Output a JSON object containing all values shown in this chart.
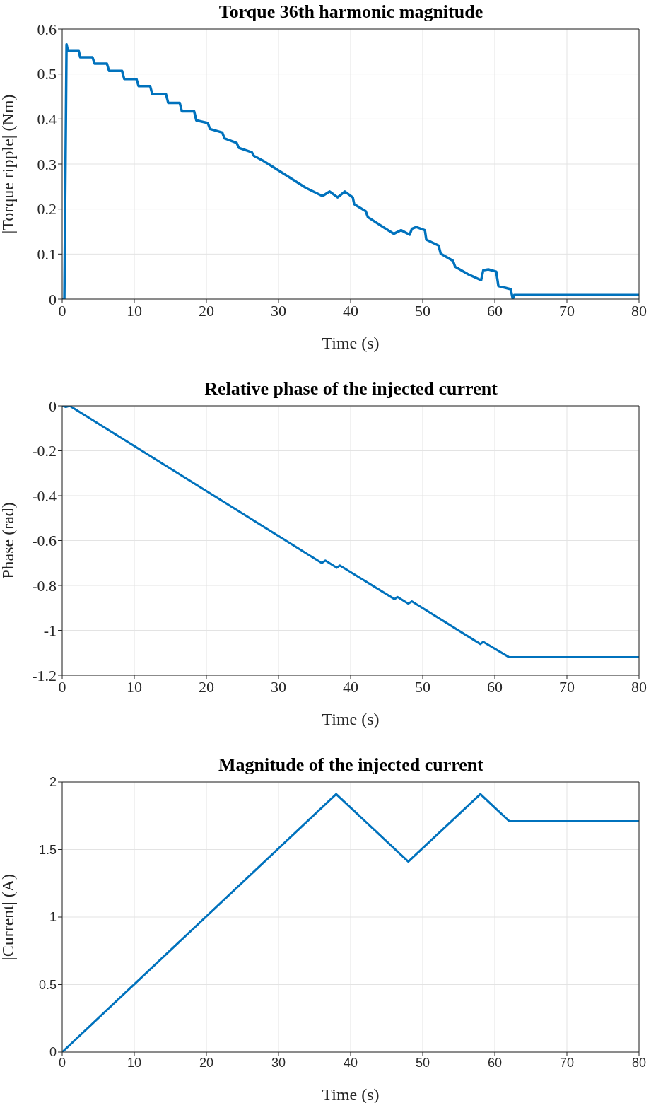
{
  "chart_data": [
    {
      "type": "line",
      "title": "Torque 36th harmonic magnitude",
      "xlabel": "Time (s)",
      "ylabel": "|Torque ripple| (Nm)",
      "color": "#0072bd",
      "grid": true,
      "xlim": [
        0,
        80
      ],
      "ylim": [
        0,
        0.6
      ],
      "xticks": [
        0,
        10,
        20,
        30,
        40,
        50,
        60,
        70,
        80
      ],
      "yticks": [
        0,
        0.1,
        0.2,
        0.3,
        0.4,
        0.5,
        0.6
      ],
      "x": [
        0,
        0.3,
        0.6,
        0.8,
        2.3,
        2.5,
        4.2,
        4.5,
        6.2,
        6.5,
        8.3,
        8.6,
        10.3,
        10.6,
        12.2,
        12.5,
        14.4,
        14.7,
        16.3,
        16.6,
        18.3,
        18.6,
        20.2,
        20.5,
        22.2,
        22.5,
        24.2,
        24.5,
        26.3,
        26.6,
        27.9,
        30,
        33.8,
        36.1,
        37.1,
        38.2,
        39.2,
        40.3,
        40.5,
        42.1,
        42.4,
        44.9,
        46,
        47,
        48.2,
        48.5,
        49.1,
        50.3,
        50.5,
        52.2,
        52.5,
        54.2,
        54.5,
        56.2,
        58.1,
        58.4,
        59.1,
        60.2,
        60.5,
        62.2,
        62.5,
        62.7,
        80
      ],
      "values": [
        0,
        0,
        0.566,
        0.551,
        0.551,
        0.537,
        0.537,
        0.523,
        0.523,
        0.507,
        0.507,
        0.489,
        0.489,
        0.473,
        0.473,
        0.455,
        0.455,
        0.436,
        0.436,
        0.417,
        0.417,
        0.397,
        0.391,
        0.378,
        0.37,
        0.357,
        0.347,
        0.336,
        0.326,
        0.318,
        0.307,
        0.286,
        0.247,
        0.229,
        0.239,
        0.226,
        0.239,
        0.226,
        0.211,
        0.195,
        0.182,
        0.156,
        0.145,
        0.153,
        0.143,
        0.156,
        0.16,
        0.153,
        0.132,
        0.119,
        0.101,
        0.085,
        0.072,
        0.056,
        0.042,
        0.064,
        0.066,
        0.061,
        0.029,
        0.022,
        0,
        0.009,
        0.009
      ]
    },
    {
      "type": "line",
      "title": "Relative phase of the injected current",
      "xlabel": "Time (s)",
      "ylabel": "Phase (rad)",
      "color": "#0072bd",
      "grid": true,
      "xlim": [
        0,
        80
      ],
      "ylim": [
        -1.2,
        0
      ],
      "xticks": [
        0,
        10,
        20,
        30,
        40,
        50,
        60,
        70,
        80
      ],
      "yticks": [
        -1.2,
        -1,
        -0.8,
        -0.6,
        -0.4,
        -0.2,
        0
      ],
      "x": [
        0,
        0.5,
        1.05,
        36,
        36.5,
        38.1,
        38.5,
        46.1,
        46.5,
        48,
        48.5,
        58,
        58.4,
        62,
        80
      ],
      "values": [
        0,
        -0.005,
        0,
        -0.7,
        -0.689,
        -0.721,
        -0.711,
        -0.861,
        -0.851,
        -0.881,
        -0.871,
        -1.061,
        -1.051,
        -1.12,
        -1.12
      ]
    },
    {
      "type": "line",
      "title": "Magnitude of the injected current",
      "xlabel": "Time (s)",
      "ylabel": "|Current| (A)",
      "color": "#0072bd",
      "grid": true,
      "xlim": [
        0,
        80
      ],
      "ylim": [
        0,
        2
      ],
      "xticks": [
        0,
        10,
        20,
        30,
        40,
        50,
        60,
        70,
        80
      ],
      "yticks": [
        0,
        0.5,
        1,
        1.5,
        2
      ],
      "x": [
        0,
        38,
        48,
        58,
        62,
        80
      ],
      "values": [
        0,
        1.91,
        1.41,
        1.91,
        1.71,
        1.71
      ]
    }
  ]
}
